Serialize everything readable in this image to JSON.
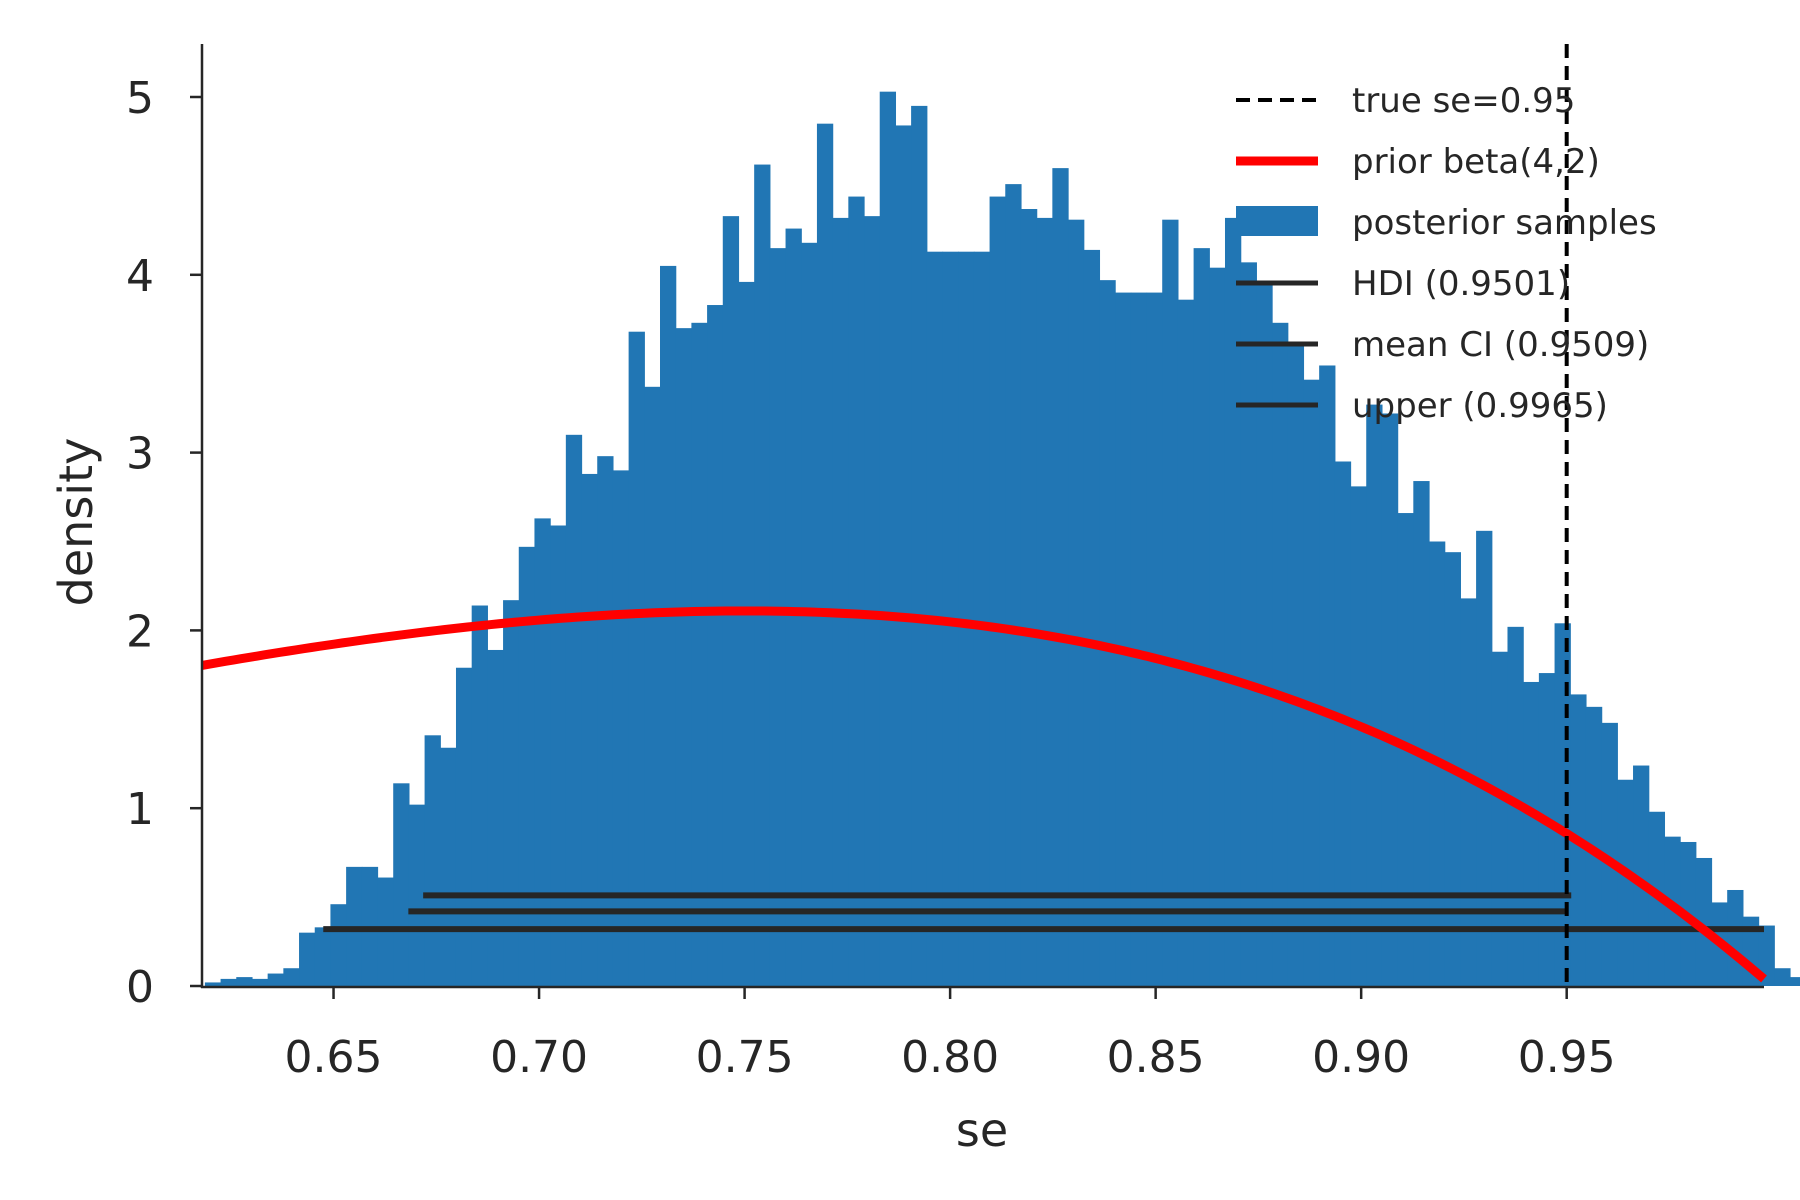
{
  "chart_data": {
    "type": "bar",
    "xlabel": "se",
    "ylabel": "density",
    "xlim": [
      0.618,
      0.998
    ],
    "ylim": [
      0,
      5.3
    ],
    "x_ticks": [
      0.65,
      0.7,
      0.75,
      0.8,
      0.85,
      0.9,
      0.95
    ],
    "x_tick_labels": [
      "0.65",
      "0.70",
      "0.75",
      "0.80",
      "0.85",
      "0.90",
      "0.95"
    ],
    "y_ticks": [
      0,
      1,
      2,
      3,
      4,
      5
    ],
    "y_tick_labels": [
      "0",
      "1",
      "2",
      "3",
      "4",
      "5"
    ],
    "grid": false,
    "legend_placement": "top-right",
    "bin_start": 0.6187,
    "bin_width": 0.003818,
    "bin_values": [
      0.02,
      0.04,
      0.05,
      0.04,
      0.07,
      0.1,
      0.3,
      0.33,
      0.46,
      0.67,
      0.67,
      0.61,
      1.14,
      1.02,
      1.41,
      1.34,
      1.79,
      2.14,
      1.89,
      2.17,
      2.47,
      2.63,
      2.59,
      3.1,
      2.88,
      2.98,
      2.9,
      3.68,
      3.37,
      4.05,
      3.7,
      3.73,
      3.83,
      4.33,
      3.96,
      4.62,
      4.15,
      4.26,
      4.18,
      4.85,
      4.32,
      4.44,
      4.33,
      5.03,
      4.84,
      4.95,
      4.13,
      4.13,
      4.13,
      4.13,
      4.44,
      4.51,
      4.37,
      4.32,
      4.6,
      4.31,
      4.14,
      3.97,
      3.9,
      3.9,
      3.9,
      4.31,
      3.86,
      4.15,
      4.04,
      4.32,
      4.07,
      3.96,
      3.73,
      3.61,
      3.41,
      3.49,
      2.95,
      2.81,
      3.27,
      3.22,
      2.66,
      2.84,
      2.5,
      2.44,
      2.18,
      2.56,
      1.88,
      2.02,
      1.71,
      1.76,
      2.04,
      1.64,
      1.57,
      1.48,
      1.16,
      1.24,
      0.98,
      0.84,
      0.81,
      0.72,
      0.47,
      0.54,
      0.39,
      0.34,
      0.1,
      0.05
    ],
    "true_se": 0.95,
    "prior": {
      "alpha": 4,
      "beta": 2
    },
    "intervals": [
      {
        "name": "HDI (0.9501)",
        "lo": 0.6718,
        "hi": 0.9511,
        "y": 0.51
      },
      {
        "name": "mean CI (0.9509)",
        "lo": 0.6682,
        "hi": 0.9496,
        "y": 0.42
      },
      {
        "name": "upper (0.9965)",
        "lo": 0.6475,
        "hi": 0.998,
        "y": 0.32
      }
    ],
    "legend": [
      {
        "label": "true se=0.95",
        "kind": "dashed",
        "color": "#000000"
      },
      {
        "label": "prior beta(4,2)",
        "kind": "line-thick",
        "color": "#ff0000"
      },
      {
        "label": "posterior samples",
        "kind": "patch",
        "color": "#2176b4"
      },
      {
        "label": "HDI (0.9501)",
        "kind": "line",
        "color": "#262626"
      },
      {
        "label": "mean CI (0.9509)",
        "kind": "line",
        "color": "#262626"
      },
      {
        "label": "upper (0.9965)",
        "kind": "line",
        "color": "#262626"
      }
    ],
    "colors": {
      "histogram": "#2176b4",
      "prior": "#ff0000",
      "true_line": "#000000",
      "interval": "#262626",
      "axis": "#262626"
    }
  }
}
